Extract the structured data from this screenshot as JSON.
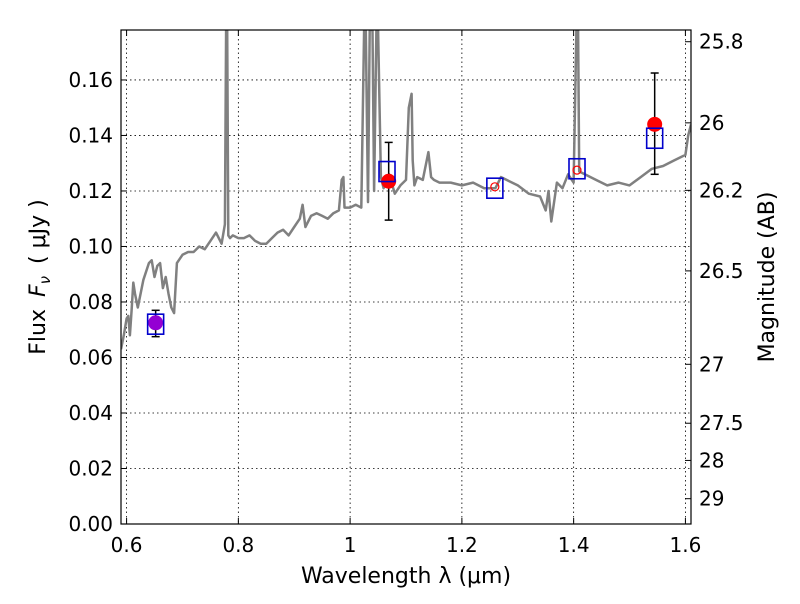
{
  "chart_data": {
    "type": "scatter",
    "xlabel": "Wavelength  λ (μm)",
    "ylabel_prefix": "Flux",
    "ylabel_symbol": "F",
    "ylabel_subscript": "ν",
    "ylabel_unit": "( μJy )",
    "ylabel_right": "Magnitude (AB)",
    "xlim": [
      0.59,
      1.61
    ],
    "ylim": [
      0.0,
      0.178
    ],
    "grid": true,
    "x_ticks": [
      0.6,
      0.8,
      1.0,
      1.2,
      1.4,
      1.6
    ],
    "x_tick_labels": [
      "0.6",
      "0.8",
      "1",
      "1.2",
      "1.4",
      "1.6"
    ],
    "y_ticks": [
      0.0,
      0.02,
      0.04,
      0.06,
      0.08,
      0.1,
      0.12,
      0.14,
      0.16
    ],
    "y_tick_labels": [
      "0.00",
      "0.02",
      "0.04",
      "0.06",
      "0.08",
      "0.10",
      "0.12",
      "0.14",
      "0.16"
    ],
    "mag_ticks": [
      "25.8",
      "26",
      "26.2",
      "26.5",
      "27",
      "27.5",
      "28",
      "29"
    ],
    "colors": {
      "spectrum": "#808080",
      "observed": "#ff0000",
      "observed_purple": "#9400d3",
      "model_box": "#0000cc",
      "errorbar": "#000000"
    },
    "spectrum": {
      "x": [
        0.59,
        0.595,
        0.6,
        0.603,
        0.606,
        0.609,
        0.612,
        0.615,
        0.62,
        0.63,
        0.64,
        0.645,
        0.65,
        0.655,
        0.66,
        0.665,
        0.67,
        0.675,
        0.68,
        0.685,
        0.69,
        0.7,
        0.71,
        0.72,
        0.73,
        0.74,
        0.75,
        0.76,
        0.77,
        0.776,
        0.778,
        0.78,
        0.782,
        0.785,
        0.79,
        0.8,
        0.81,
        0.82,
        0.83,
        0.84,
        0.85,
        0.86,
        0.87,
        0.88,
        0.89,
        0.9,
        0.91,
        0.915,
        0.92,
        0.93,
        0.94,
        0.95,
        0.96,
        0.97,
        0.98,
        0.985,
        0.988,
        0.99,
        1.0,
        1.01,
        1.02,
        1.025,
        1.028,
        1.032,
        1.035,
        1.04,
        1.043,
        1.047,
        1.05,
        1.055,
        1.06,
        1.07,
        1.08,
        1.09,
        1.1,
        1.105,
        1.11,
        1.112,
        1.115,
        1.12,
        1.13,
        1.14,
        1.145,
        1.15,
        1.16,
        1.18,
        1.2,
        1.22,
        1.24,
        1.26,
        1.27,
        1.28,
        1.3,
        1.32,
        1.34,
        1.35,
        1.355,
        1.36,
        1.37,
        1.38,
        1.39,
        1.4,
        1.405,
        1.408,
        1.41,
        1.42,
        1.44,
        1.46,
        1.48,
        1.5,
        1.52,
        1.54,
        1.56,
        1.58,
        1.6,
        1.605,
        1.61
      ],
      "y": [
        0.063,
        0.068,
        0.074,
        0.075,
        0.068,
        0.077,
        0.087,
        0.083,
        0.078,
        0.088,
        0.094,
        0.095,
        0.089,
        0.093,
        0.094,
        0.085,
        0.089,
        0.083,
        0.078,
        0.076,
        0.094,
        0.097,
        0.098,
        0.098,
        0.1,
        0.099,
        0.102,
        0.105,
        0.101,
        0.108,
        0.178,
        0.178,
        0.104,
        0.103,
        0.104,
        0.103,
        0.103,
        0.104,
        0.102,
        0.101,
        0.101,
        0.103,
        0.105,
        0.106,
        0.104,
        0.107,
        0.11,
        0.115,
        0.107,
        0.111,
        0.112,
        0.111,
        0.11,
        0.112,
        0.113,
        0.124,
        0.125,
        0.114,
        0.114,
        0.115,
        0.114,
        0.178,
        0.178,
        0.116,
        0.178,
        0.178,
        0.12,
        0.178,
        0.178,
        0.125,
        0.121,
        0.126,
        0.119,
        0.122,
        0.124,
        0.15,
        0.155,
        0.131,
        0.122,
        0.125,
        0.124,
        0.134,
        0.125,
        0.124,
        0.123,
        0.123,
        0.122,
        0.123,
        0.121,
        0.121,
        0.125,
        0.124,
        0.122,
        0.119,
        0.118,
        0.113,
        0.12,
        0.109,
        0.123,
        0.121,
        0.126,
        0.123,
        0.178,
        0.178,
        0.127,
        0.126,
        0.124,
        0.122,
        0.123,
        0.122,
        0.125,
        0.128,
        0.129,
        0.131,
        0.133,
        0.14,
        0.144
      ]
    },
    "model_boxes": [
      {
        "x": 0.652,
        "y": 0.072
      },
      {
        "x": 1.066,
        "y": 0.127
      },
      {
        "x": 1.259,
        "y": 0.121
      },
      {
        "x": 1.406,
        "y": 0.128
      },
      {
        "x": 1.545,
        "y": 0.139
      }
    ],
    "observed_points": [
      {
        "x": 0.652,
        "y": 0.0725,
        "err_low": 0.005,
        "err_high": 0.0045,
        "purple": true
      },
      {
        "x": 1.069,
        "y": 0.1235,
        "err_low": 0.014,
        "err_high": 0.014
      },
      {
        "x": 1.259,
        "y": 0.1215,
        "err_low": 0.0,
        "err_high": 0.0
      },
      {
        "x": 1.406,
        "y": 0.1275,
        "err_low": 0.0,
        "err_high": 0.0
      },
      {
        "x": 1.545,
        "y": 0.144,
        "err_low": 0.018,
        "err_high": 0.0185
      }
    ]
  }
}
